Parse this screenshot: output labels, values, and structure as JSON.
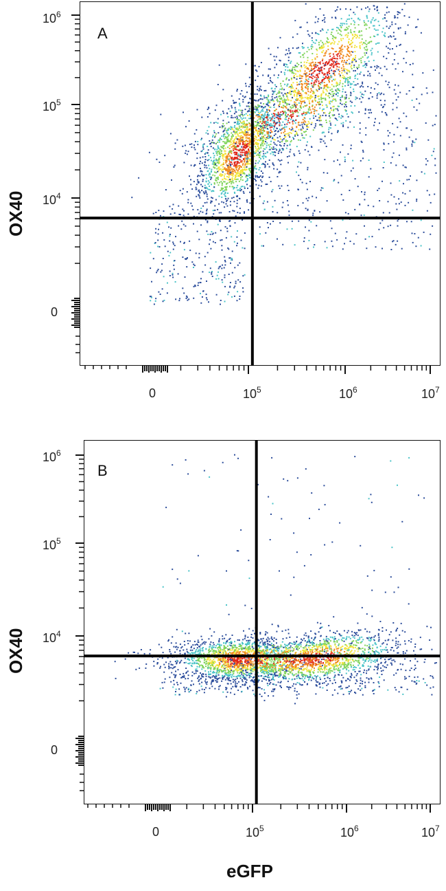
{
  "chart_data": [
    {
      "type": "scatter",
      "panel_label": "A",
      "xlabel": "eGFP",
      "ylabel": "OX40",
      "x_scale": "biexponential",
      "y_scale": "biexponential",
      "xticks": [
        {
          "base": "0",
          "exp": ""
        },
        {
          "base": "10",
          "exp": "5"
        },
        {
          "base": "10",
          "exp": "6"
        },
        {
          "base": "10",
          "exp": "7"
        }
      ],
      "yticks": [
        {
          "base": "0",
          "exp": ""
        },
        {
          "base": "10",
          "exp": "4"
        },
        {
          "base": "10",
          "exp": "5"
        },
        {
          "base": "10",
          "exp": "6"
        }
      ],
      "quadrant_gate": {
        "x": 110000,
        "y": 2000
      },
      "populations": [
        {
          "center_x": 30000,
          "center_y": 30000,
          "description": "eGFP-negative, OX40-positive dense cluster"
        },
        {
          "center_x": 600000,
          "center_y": 250000,
          "description": "eGFP-positive, OX40-high dense cluster"
        }
      ],
      "grid": false
    },
    {
      "type": "scatter",
      "panel_label": "B",
      "xlabel": "eGFP",
      "ylabel": "OX40",
      "x_scale": "biexponential",
      "y_scale": "biexponential",
      "xticks": [
        {
          "base": "0",
          "exp": ""
        },
        {
          "base": "10",
          "exp": "5"
        },
        {
          "base": "10",
          "exp": "6"
        },
        {
          "base": "10",
          "exp": "7"
        }
      ],
      "yticks": [
        {
          "base": "0",
          "exp": ""
        },
        {
          "base": "10",
          "exp": "4"
        },
        {
          "base": "10",
          "exp": "5"
        },
        {
          "base": "10",
          "exp": "6"
        }
      ],
      "quadrant_gate": {
        "x": 110000,
        "y": 2000
      },
      "populations": [
        {
          "center_x": 15000,
          "center_y": 300,
          "description": "eGFP-negative, OX40-negative dense cluster"
        },
        {
          "center_x": 500000,
          "center_y": 300,
          "description": "eGFP-positive, OX40-negative dense cluster"
        }
      ],
      "grid": false
    }
  ],
  "colors": {
    "density_low": "#2b4c9b",
    "density_mid": "#49c3c7",
    "density_high": "#f2e33a",
    "density_peak": "#e0291c",
    "gate_line": "#000000"
  }
}
